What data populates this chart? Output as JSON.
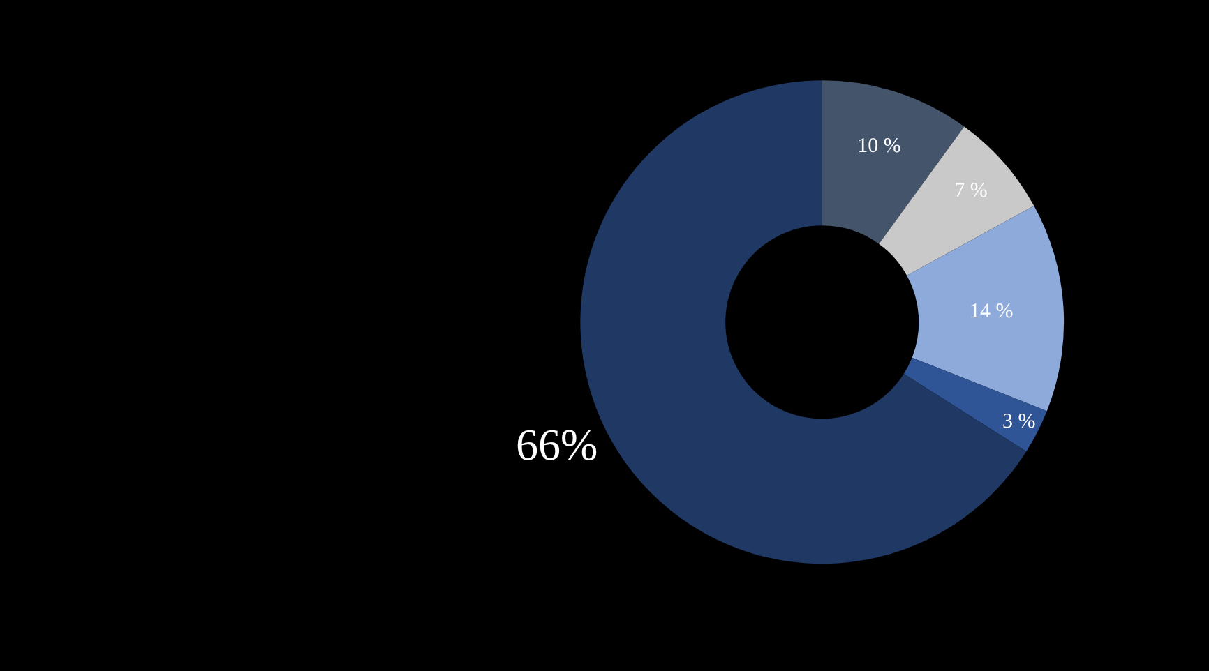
{
  "chart_data": {
    "type": "donut",
    "categories": [
      null,
      null,
      null,
      null,
      null
    ],
    "values": [
      10,
      7,
      14,
      3,
      66
    ],
    "colors": [
      "#44546a",
      "#c9c9c9",
      "#8eaadb",
      "#2f5597",
      "#1f3864"
    ],
    "value_labels": [
      "10 %",
      "7 %",
      "14 %",
      "3 %",
      "66%"
    ],
    "legend": false
  }
}
